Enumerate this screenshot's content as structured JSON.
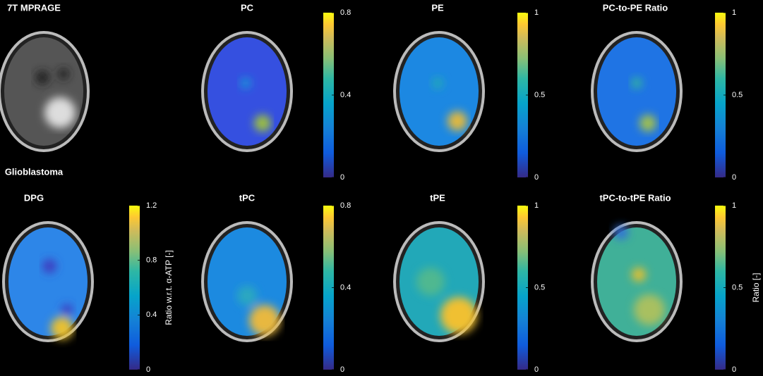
{
  "panels": [
    {
      "title": "7T MPRAGE",
      "caption": "Glioblastoma"
    },
    {
      "title": "PC",
      "colorbar": {
        "lim": [
          0,
          0.8
        ],
        "ticks": [
          0,
          0.4,
          0.8
        ]
      }
    },
    {
      "title": "PE",
      "colorbar": {
        "lim": [
          0,
          1
        ],
        "ticks": [
          0,
          0.5,
          1
        ]
      }
    },
    {
      "title": "PC-to-PE Ratio",
      "colorbar": {
        "lim": [
          0,
          1
        ],
        "ticks": [
          0,
          0.5,
          1
        ]
      }
    },
    {
      "title": "DPG",
      "colorbar": {
        "lim": [
          0,
          1.2
        ],
        "ticks": [
          0,
          0.4,
          0.8,
          1.2
        ],
        "label": "Ratio w.r.t. α-ATP [-]"
      }
    },
    {
      "title": "tPC",
      "colorbar": {
        "lim": [
          0,
          0.8
        ],
        "ticks": [
          0,
          0.4,
          0.8
        ]
      }
    },
    {
      "title": "tPE",
      "colorbar": {
        "lim": [
          0,
          1
        ],
        "ticks": [
          0,
          0.5,
          1
        ]
      }
    },
    {
      "title": "tPC-to-tPE Ratio",
      "colorbar": {
        "lim": [
          0,
          1
        ],
        "ticks": [
          0,
          0.5,
          1
        ],
        "label": "Ratio [-]"
      }
    }
  ]
}
